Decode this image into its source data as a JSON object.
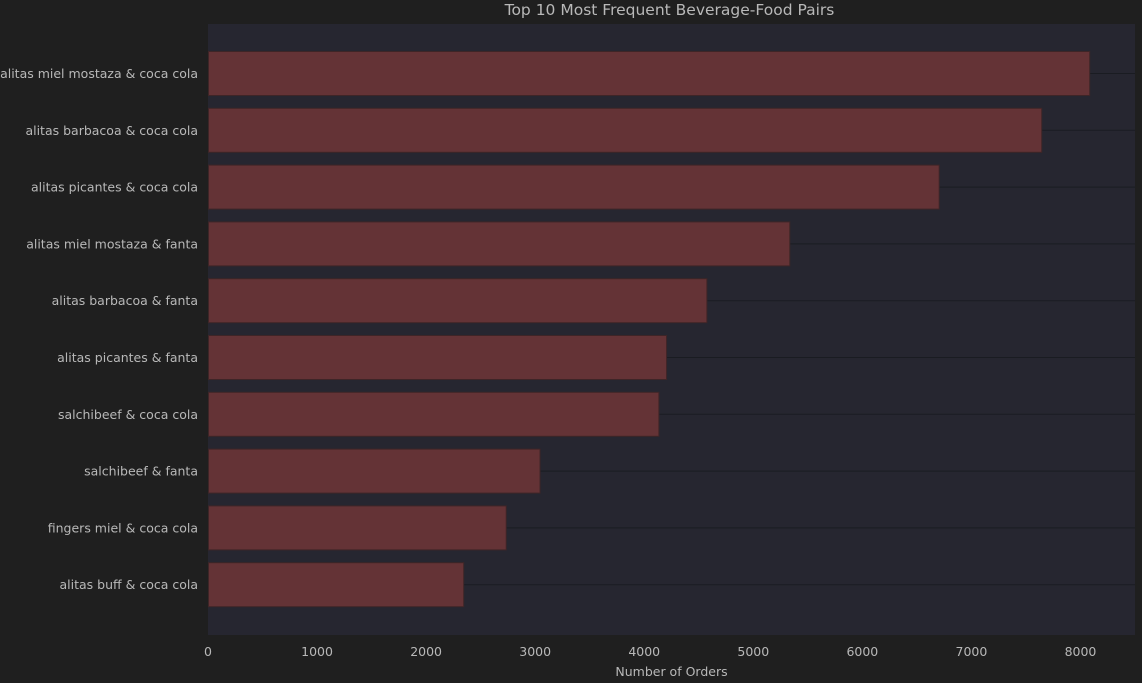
{
  "chart_data": {
    "type": "bar",
    "orientation": "horizontal",
    "title": "Top 10 Most Frequent Beverage-Food Pairs",
    "xlabel": "Number of Orders",
    "ylabel": "",
    "categories": [
      "alitas miel mostaza & coca cola",
      "alitas barbacoa & coca cola",
      "alitas picantes & coca cola",
      "alitas miel mostaza & fanta",
      "alitas barbacoa & fanta",
      "alitas picantes & fanta",
      "salchibeef & coca cola",
      "salchibeef & fanta",
      "fingers miel & coca cola",
      "alitas buff & coca cola"
    ],
    "values": [
      8080,
      7640,
      6700,
      5330,
      4570,
      4200,
      4130,
      3040,
      2730,
      2340
    ],
    "xlim": [
      0,
      8500
    ],
    "xticks": [
      0,
      1000,
      2000,
      3000,
      4000,
      5000,
      6000,
      7000,
      8000
    ],
    "grid": true,
    "legend": "none",
    "colors": {
      "background": "#1f1f1f",
      "plot_background": "#262630",
      "bar_fill": "#643336",
      "bar_edge": "#3e2527",
      "text": "#b8b8b8",
      "grid": "#1a1c22"
    }
  }
}
